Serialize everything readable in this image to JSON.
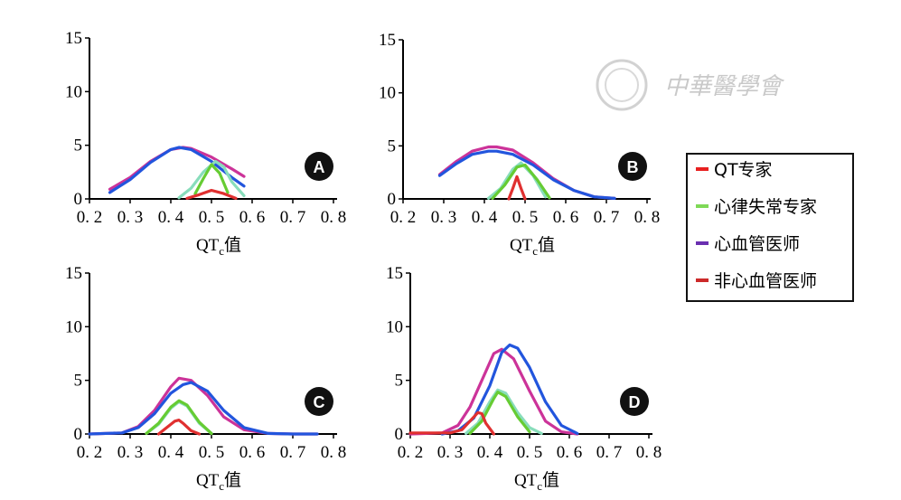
{
  "watermark": {
    "text": "中華醫學會"
  },
  "legend": {
    "items": [
      {
        "label": "QT专家",
        "color": "#e82020"
      },
      {
        "label": "心律失常专家",
        "color": "#7ed957"
      },
      {
        "label": "心血管医师",
        "color": "#6a2fb0"
      },
      {
        "label": "非心血管医师",
        "color": "#cc2a2a"
      }
    ]
  },
  "chart_data": [
    {
      "panel": "A",
      "type": "line",
      "xlabel": "QTc值",
      "xlim": [
        0.2,
        0.8
      ],
      "ylim": [
        0,
        15
      ],
      "xticks": [
        "0.2",
        "0.3",
        "0.4",
        "0.5",
        "0.6",
        "0.7",
        "0.8"
      ],
      "yticks": [
        "0",
        "5",
        "10",
        "15"
      ],
      "series": [
        {
          "color": "#cc3399",
          "x": [
            0.25,
            0.3,
            0.35,
            0.4,
            0.43,
            0.45,
            0.5,
            0.55,
            0.58
          ],
          "y": [
            0.9,
            2.0,
            3.5,
            4.6,
            4.8,
            4.7,
            3.9,
            2.8,
            2.1
          ]
        },
        {
          "color": "#2255dd",
          "x": [
            0.25,
            0.3,
            0.35,
            0.4,
            0.42,
            0.45,
            0.5,
            0.55,
            0.58
          ],
          "y": [
            0.6,
            1.8,
            3.4,
            4.6,
            4.8,
            4.6,
            3.5,
            2.0,
            1.2
          ]
        },
        {
          "color": "#88ddbb",
          "x": [
            0.42,
            0.45,
            0.48,
            0.51,
            0.53,
            0.55,
            0.58
          ],
          "y": [
            0.1,
            1.0,
            2.5,
            3.5,
            3.0,
            1.6,
            0.3
          ]
        },
        {
          "color": "#66cc33",
          "x": [
            0.46,
            0.48,
            0.5,
            0.52,
            0.54
          ],
          "y": [
            0.5,
            1.9,
            3.2,
            2.4,
            0.6
          ]
        },
        {
          "color": "#e03030",
          "x": [
            0.44,
            0.47,
            0.5,
            0.53,
            0.56
          ],
          "y": [
            0.05,
            0.4,
            0.8,
            0.5,
            0.05
          ]
        }
      ]
    },
    {
      "panel": "B",
      "type": "line",
      "xlabel": "QTc值",
      "xlim": [
        0.2,
        0.8
      ],
      "ylim": [
        0,
        15
      ],
      "xticks": [
        "0.2",
        "0.3",
        "0.4",
        "0.5",
        "0.6",
        "0.7",
        "0.8"
      ],
      "yticks": [
        "0",
        "5",
        "10",
        "15"
      ],
      "series": [
        {
          "color": "#cc3399",
          "x": [
            0.29,
            0.33,
            0.37,
            0.41,
            0.43,
            0.47,
            0.52,
            0.57,
            0.62,
            0.67,
            0.72
          ],
          "y": [
            2.3,
            3.5,
            4.5,
            4.9,
            4.9,
            4.6,
            3.4,
            1.9,
            0.8,
            0.2,
            0.05
          ]
        },
        {
          "color": "#2255dd",
          "x": [
            0.29,
            0.33,
            0.37,
            0.41,
            0.43,
            0.47,
            0.52,
            0.57,
            0.62,
            0.67,
            0.72
          ],
          "y": [
            2.2,
            3.3,
            4.2,
            4.5,
            4.5,
            4.2,
            3.2,
            1.8,
            0.8,
            0.2,
            0.05
          ]
        },
        {
          "color": "#88ddbb",
          "x": [
            0.41,
            0.44,
            0.47,
            0.49,
            0.52,
            0.55
          ],
          "y": [
            0.05,
            1.0,
            2.8,
            3.4,
            2.2,
            0.2
          ]
        },
        {
          "color": "#66cc33",
          "x": [
            0.42,
            0.45,
            0.48,
            0.5,
            0.53,
            0.56
          ],
          "y": [
            0.05,
            1.3,
            3.0,
            3.2,
            1.8,
            0.1
          ]
        },
        {
          "color": "#e03030",
          "x": [
            0.46,
            0.47,
            0.48,
            0.49,
            0.5
          ],
          "y": [
            0,
            1.0,
            2.1,
            1.0,
            0
          ]
        }
      ]
    },
    {
      "panel": "C",
      "type": "line",
      "xlabel": "QTc值",
      "xlim": [
        0.2,
        0.8
      ],
      "ylim": [
        0,
        15
      ],
      "xticks": [
        "0.2",
        "0.3",
        "0.4",
        "0.5",
        "0.6",
        "0.7",
        "0.8"
      ],
      "yticks": [
        "0",
        "5",
        "10",
        "15"
      ],
      "series": [
        {
          "color": "#cc3399",
          "x": [
            0.2,
            0.28,
            0.32,
            0.36,
            0.4,
            0.42,
            0.45,
            0.49,
            0.53,
            0.58,
            0.64,
            0.7,
            0.76
          ],
          "y": [
            0,
            0.1,
            0.7,
            2.2,
            4.4,
            5.2,
            5.0,
            3.6,
            1.6,
            0.4,
            0.05,
            0,
            0
          ]
        },
        {
          "color": "#2255dd",
          "x": [
            0.2,
            0.28,
            0.32,
            0.36,
            0.4,
            0.43,
            0.45,
            0.49,
            0.53,
            0.58,
            0.64,
            0.7,
            0.76
          ],
          "y": [
            0,
            0.1,
            0.6,
            1.9,
            3.8,
            4.6,
            4.8,
            4.0,
            2.2,
            0.6,
            0.05,
            0,
            0
          ]
        },
        {
          "color": "#88ddbb",
          "x": [
            0.34,
            0.37,
            0.4,
            0.42,
            0.44,
            0.47,
            0.5
          ],
          "y": [
            0.05,
            0.9,
            2.4,
            3.0,
            2.6,
            1.0,
            0.05
          ]
        },
        {
          "color": "#66cc33",
          "x": [
            0.34,
            0.37,
            0.4,
            0.42,
            0.44,
            0.47,
            0.5
          ],
          "y": [
            0.05,
            1.0,
            2.5,
            3.1,
            2.7,
            1.1,
            0.05
          ]
        },
        {
          "color": "#e03030",
          "x": [
            0.37,
            0.39,
            0.41,
            0.42,
            0.43,
            0.45,
            0.47
          ],
          "y": [
            0,
            0.6,
            1.2,
            1.3,
            1.0,
            0.3,
            0
          ]
        }
      ]
    },
    {
      "panel": "D",
      "type": "line",
      "xlabel": "QTc值",
      "xlim": [
        0.2,
        0.8
      ],
      "ylim": [
        0,
        15
      ],
      "xticks": [
        "0.2",
        "0.3",
        "0.4",
        "0.5",
        "0.6",
        "0.7",
        "0.8"
      ],
      "yticks": [
        "0",
        "5",
        "10",
        "15"
      ],
      "series": [
        {
          "color": "#cc3399",
          "x": [
            0.2,
            0.28,
            0.32,
            0.35,
            0.38,
            0.41,
            0.43,
            0.46,
            0.5,
            0.54,
            0.58,
            0.62
          ],
          "y": [
            0,
            0.1,
            0.8,
            2.5,
            5.0,
            7.5,
            7.9,
            7.0,
            4.0,
            1.2,
            0.2,
            0
          ]
        },
        {
          "color": "#2255dd",
          "x": [
            0.28,
            0.32,
            0.36,
            0.4,
            0.43,
            0.45,
            0.47,
            0.5,
            0.54,
            0.58,
            0.62
          ],
          "y": [
            0,
            0.3,
            1.5,
            4.5,
            7.6,
            8.3,
            8.0,
            6.2,
            3.0,
            0.8,
            0.05
          ]
        },
        {
          "color": "#88ddbb",
          "x": [
            0.34,
            0.37,
            0.4,
            0.42,
            0.44,
            0.47,
            0.5,
            0.53
          ],
          "y": [
            0.05,
            1.0,
            3.0,
            4.1,
            3.8,
            2.0,
            0.6,
            0.05
          ]
        },
        {
          "color": "#66cc33",
          "x": [
            0.35,
            0.38,
            0.41,
            0.42,
            0.44,
            0.47,
            0.5
          ],
          "y": [
            0.05,
            1.2,
            3.3,
            3.9,
            3.5,
            1.6,
            0.2
          ]
        },
        {
          "color": "#e03030",
          "x": [
            0.2,
            0.3,
            0.33,
            0.35,
            0.37,
            0.38,
            0.39,
            0.41
          ],
          "y": [
            0.1,
            0.1,
            0.4,
            1.2,
            2.0,
            1.9,
            1.0,
            0
          ]
        }
      ]
    }
  ]
}
